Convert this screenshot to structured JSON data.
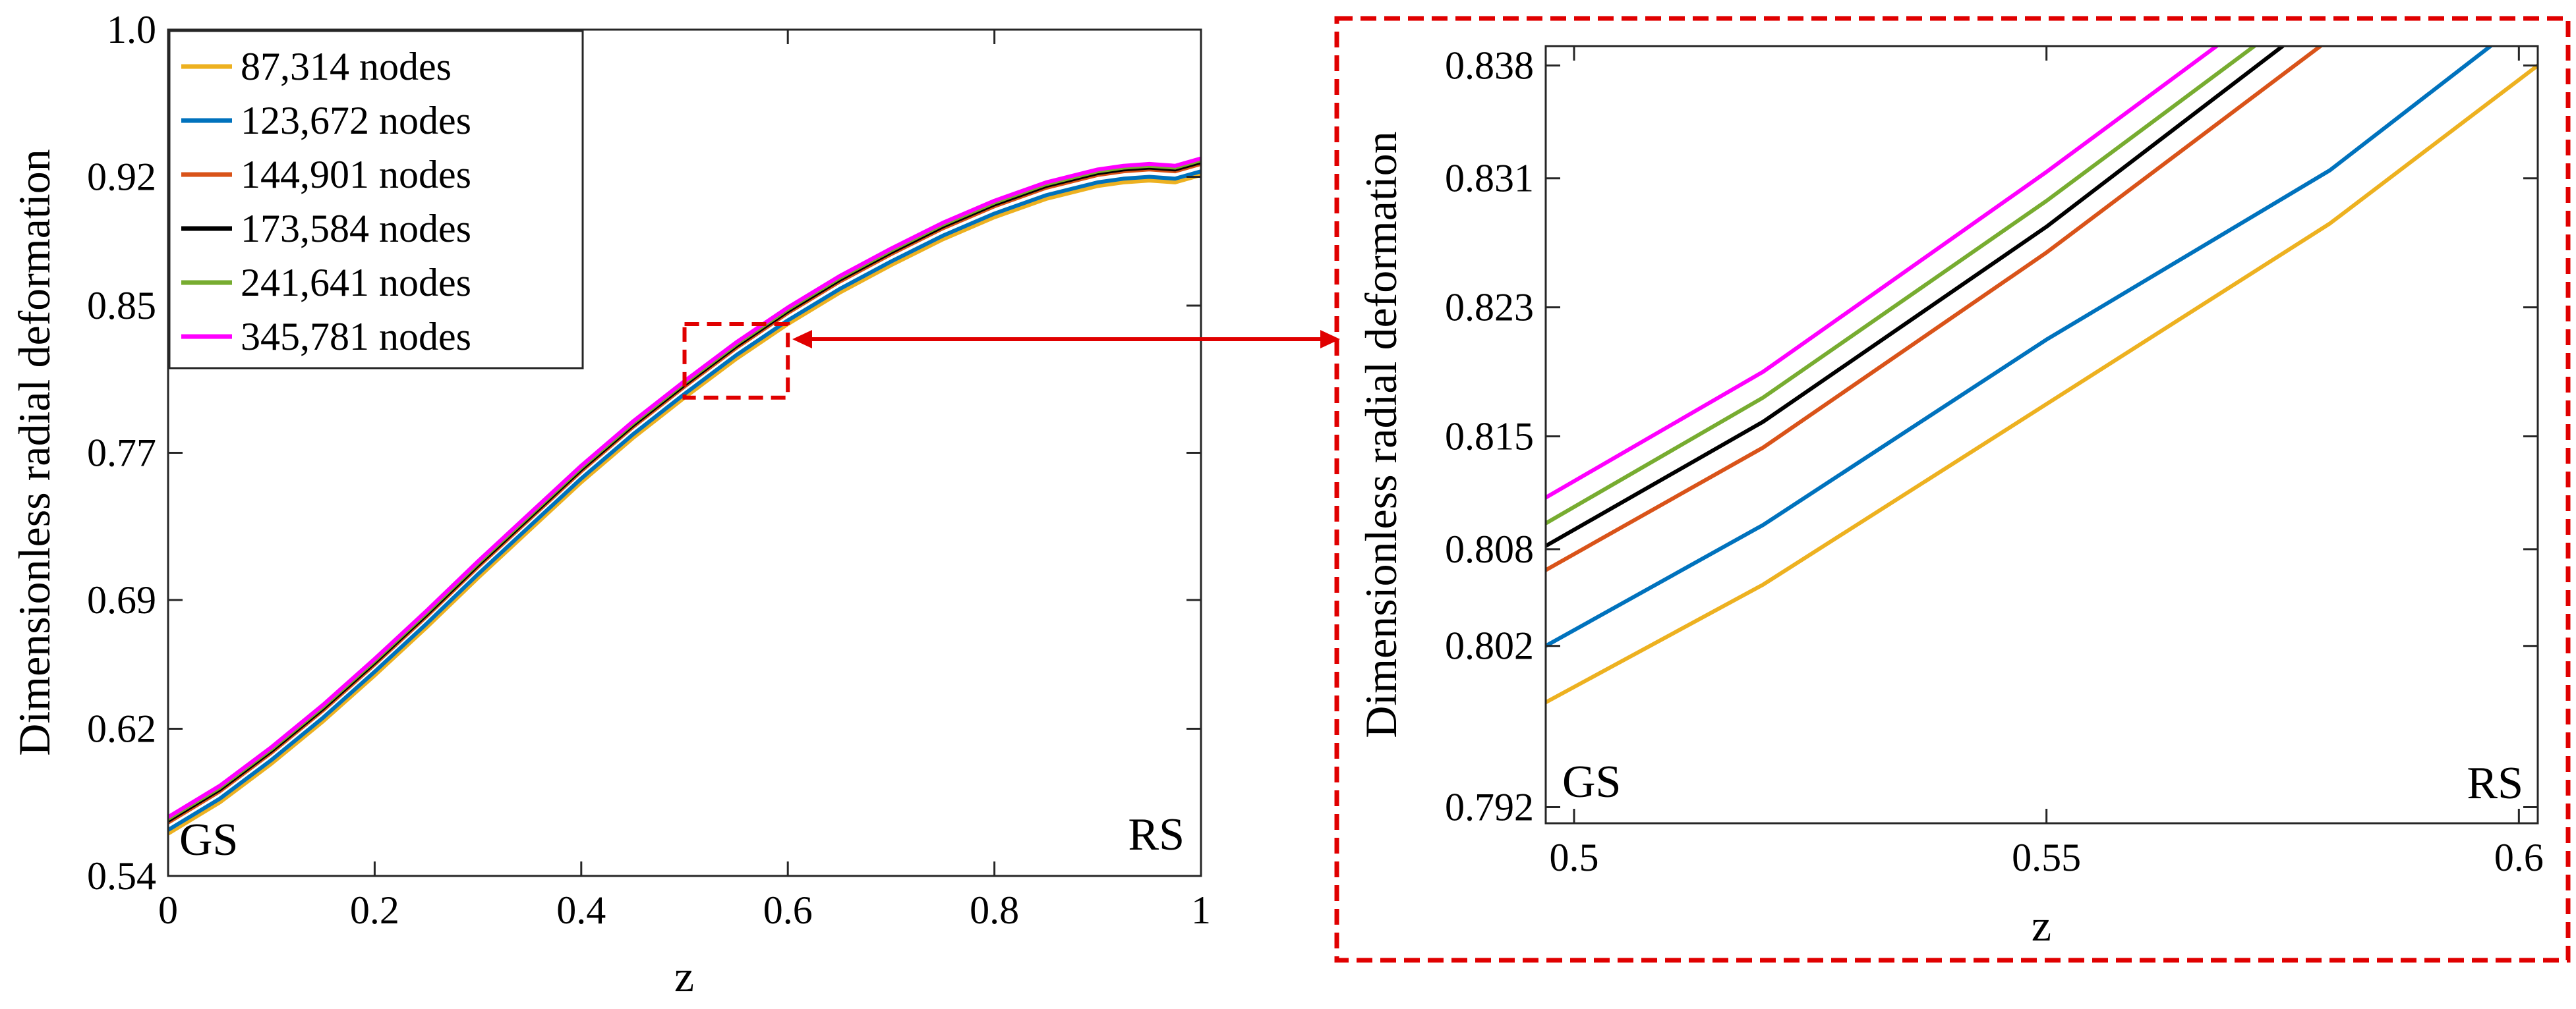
{
  "chart_data": [
    {
      "type": "line",
      "panel": "main",
      "xlabel": "z",
      "ylabel": "Dimensionless radial deformation",
      "xlim": [
        0,
        1
      ],
      "ylim": [
        0.54,
        1.0
      ],
      "xticks": [
        0,
        0.2,
        0.4,
        0.6,
        0.8,
        1
      ],
      "xtick_labels": [
        "0",
        "0.2",
        "0.4",
        "0.6",
        "0.8",
        "1"
      ],
      "yticks": [
        0.54,
        0.62,
        0.69,
        0.77,
        0.85,
        0.92,
        1.0
      ],
      "ytick_labels": [
        "0.54",
        "0.62",
        "0.69",
        "0.77",
        "0.85",
        "0.92",
        "1.0"
      ],
      "legend_position": "top-left",
      "annotations": {
        "left": "GS",
        "right": "RS"
      },
      "x": [
        0,
        0.05,
        0.1,
        0.15,
        0.2,
        0.25,
        0.3,
        0.35,
        0.4,
        0.45,
        0.5,
        0.55,
        0.6,
        0.65,
        0.7,
        0.75,
        0.8,
        0.85,
        0.9,
        0.925,
        0.95,
        0.975,
        1.0
      ],
      "series": [
        {
          "name": "87,314 nodes",
          "color": "#EDB120",
          "values": [
            0.563,
            0.58,
            0.601,
            0.624,
            0.649,
            0.675,
            0.702,
            0.728,
            0.754,
            0.778,
            0.8,
            0.821,
            0.84,
            0.857,
            0.872,
            0.886,
            0.898,
            0.908,
            0.915,
            0.917,
            0.918,
            0.917,
            0.921
          ]
        },
        {
          "name": "123,672 nodes",
          "color": "#0072BD",
          "values": [
            0.565,
            0.582,
            0.603,
            0.626,
            0.651,
            0.677,
            0.704,
            0.73,
            0.756,
            0.78,
            0.802,
            0.823,
            0.842,
            0.859,
            0.874,
            0.888,
            0.9,
            0.91,
            0.917,
            0.919,
            0.92,
            0.919,
            0.923
          ]
        },
        {
          "name": "144,901 nodes",
          "color": "#D95319",
          "values": [
            0.569,
            0.586,
            0.607,
            0.63,
            0.655,
            0.681,
            0.708,
            0.734,
            0.76,
            0.784,
            0.806,
            0.827,
            0.846,
            0.863,
            0.878,
            0.892,
            0.904,
            0.914,
            0.921,
            0.923,
            0.924,
            0.923,
            0.927
          ]
        },
        {
          "name": "173,584 nodes",
          "color": "#000000",
          "values": [
            0.57,
            0.587,
            0.608,
            0.631,
            0.656,
            0.682,
            0.709,
            0.735,
            0.761,
            0.785,
            0.807,
            0.828,
            0.847,
            0.864,
            0.879,
            0.893,
            0.905,
            0.915,
            0.922,
            0.924,
            0.925,
            0.924,
            0.928
          ]
        },
        {
          "name": "241,641 nodes",
          "color": "#77AC30",
          "values": [
            0.571,
            0.588,
            0.609,
            0.632,
            0.657,
            0.683,
            0.71,
            0.736,
            0.762,
            0.786,
            0.808,
            0.829,
            0.848,
            0.865,
            0.88,
            0.894,
            0.906,
            0.916,
            0.923,
            0.925,
            0.926,
            0.925,
            0.929
          ]
        },
        {
          "name": "345,781 nodes",
          "color": "#FF00FF",
          "values": [
            0.572,
            0.589,
            0.61,
            0.633,
            0.658,
            0.684,
            0.711,
            0.737,
            0.763,
            0.787,
            0.809,
            0.83,
            0.849,
            0.866,
            0.881,
            0.895,
            0.907,
            0.917,
            0.924,
            0.926,
            0.927,
            0.926,
            0.93
          ]
        }
      ],
      "highlight_box": {
        "xlim": [
          0.5,
          0.6
        ],
        "ylim": [
          0.8,
          0.84
        ],
        "color": "#E00000"
      }
    },
    {
      "type": "line",
      "panel": "zoom",
      "xlabel": "z",
      "ylabel": "Dimensionless radial deformation",
      "xlim": [
        0.497,
        0.602
      ],
      "ylim": [
        0.791,
        0.8392
      ],
      "xticks": [
        0.5,
        0.55,
        0.6
      ],
      "xtick_labels": [
        "0.5",
        "0.55",
        "0.6"
      ],
      "yticks": [
        0.792,
        0.802,
        0.808,
        0.815,
        0.823,
        0.831,
        0.838
      ],
      "ytick_labels": [
        "0.792",
        "0.802",
        "0.808",
        "0.815",
        "0.823",
        "0.831",
        "0.838"
      ],
      "annotations": {
        "left": "GS",
        "right": "RS"
      },
      "frame_color": "#E00000",
      "series": [
        {
          "name": "87,314 nodes",
          "color": "#EDB120",
          "x": [
            0.497,
            0.52,
            0.55,
            0.58,
            0.602
          ],
          "values": [
            0.7985,
            0.8058,
            0.817,
            0.8282,
            0.838
          ]
        },
        {
          "name": "123,672 nodes",
          "color": "#0072BD",
          "x": [
            0.497,
            0.52,
            0.55,
            0.58,
            0.597
          ],
          "values": [
            0.802,
            0.8095,
            0.821,
            0.8315,
            0.8392
          ]
        },
        {
          "name": "144,901 nodes",
          "color": "#D95319",
          "x": [
            0.497,
            0.52,
            0.55,
            0.579
          ],
          "values": [
            0.8067,
            0.8143,
            0.8264,
            0.8392
          ]
        },
        {
          "name": "173,584 nodes",
          "color": "#000000",
          "x": [
            0.497,
            0.52,
            0.55,
            0.575
          ],
          "values": [
            0.8082,
            0.8159,
            0.828,
            0.8392
          ]
        },
        {
          "name": "241,641 nodes",
          "color": "#77AC30",
          "x": [
            0.497,
            0.52,
            0.55,
            0.572
          ],
          "values": [
            0.8096,
            0.8174,
            0.8296,
            0.8392
          ]
        },
        {
          "name": "345,781 nodes",
          "color": "#FF00FF",
          "x": [
            0.497,
            0.52,
            0.55,
            0.568
          ],
          "values": [
            0.8112,
            0.819,
            0.8314,
            0.8392
          ]
        }
      ]
    }
  ]
}
